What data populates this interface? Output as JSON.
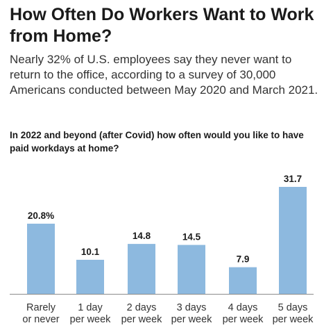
{
  "header": {
    "title": "How Often Do Workers Want to Work from Home?",
    "subtitle": "Nearly 32% of U.S. employees say they never want to return to the office, according to a survey of 30,000 Americans conducted between May 2020 and March 2021.",
    "question": "In 2022 and beyond (after Covid) how often would you like to have paid workdays at home?"
  },
  "chart_data": {
    "type": "bar",
    "categories": [
      [
        "Rarely",
        "or never"
      ],
      [
        "1 day",
        "per week"
      ],
      [
        "2 days",
        "per week"
      ],
      [
        "3 days",
        "per week"
      ],
      [
        "4 days",
        "per week"
      ],
      [
        "5 days",
        "per week"
      ]
    ],
    "values": [
      20.8,
      10.1,
      14.8,
      14.5,
      7.9,
      31.7
    ],
    "value_labels": [
      "20.8%",
      "10.1",
      "14.8",
      "14.5",
      "7.9",
      "31.7"
    ],
    "ylim": [
      0,
      31.7
    ],
    "grid": false,
    "bar_color": "#8db9df",
    "axis_color": "#8a8a8a"
  }
}
